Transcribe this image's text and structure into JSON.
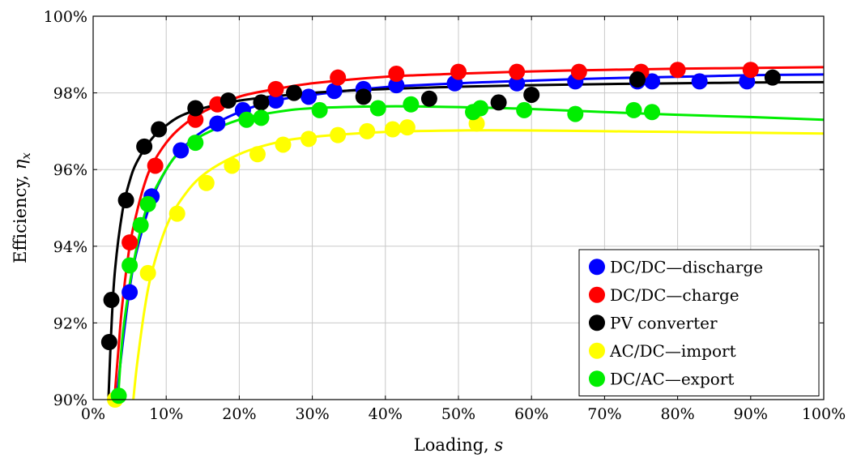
{
  "chart_data": {
    "type": "scatter",
    "title": "",
    "xlabel": "Loading, ",
    "xlabel_symbol": "s",
    "ylabel": "Efficiency, ",
    "ylabel_symbol": "η",
    "ylabel_subscript": "x",
    "xlim": [
      0,
      100
    ],
    "ylim": [
      90,
      100
    ],
    "x_ticks": [
      "0%",
      "10%",
      "20%",
      "30%",
      "40%",
      "50%",
      "60%",
      "70%",
      "80%",
      "90%",
      "100%"
    ],
    "y_ticks": [
      "90%",
      "92%",
      "94%",
      "96%",
      "98%",
      "100%"
    ],
    "x_tick_values": [
      0,
      10,
      20,
      30,
      40,
      50,
      60,
      70,
      80,
      90,
      100
    ],
    "y_tick_values": [
      90,
      92,
      94,
      96,
      98,
      100
    ],
    "grid": true,
    "legend_position": "bottom-right",
    "series": [
      {
        "name": "DC/DC—discharge",
        "color": "#0000ff",
        "points": [
          [
            5,
            92.8
          ],
          [
            8,
            95.3
          ],
          [
            12,
            96.5
          ],
          [
            17,
            97.2
          ],
          [
            20.5,
            97.55
          ],
          [
            25,
            97.8
          ],
          [
            29.5,
            97.9
          ],
          [
            33,
            98.05
          ],
          [
            37,
            98.1
          ],
          [
            41.5,
            98.2
          ],
          [
            49.5,
            98.25
          ],
          [
            58,
            98.25
          ],
          [
            66,
            98.3
          ],
          [
            74.5,
            98.3
          ],
          [
            76.5,
            98.3
          ],
          [
            83,
            98.3
          ],
          [
            89.5,
            98.3
          ]
        ],
        "fit": [
          [
            3.2,
            90
          ],
          [
            4,
            91.4
          ],
          [
            5,
            92.9
          ],
          [
            6,
            93.9
          ],
          [
            8,
            95.2
          ],
          [
            10,
            96.0
          ],
          [
            12,
            96.5
          ],
          [
            15,
            97.0
          ],
          [
            20,
            97.5
          ],
          [
            25,
            97.8
          ],
          [
            30,
            97.95
          ],
          [
            40,
            98.15
          ],
          [
            50,
            98.25
          ],
          [
            60,
            98.32
          ],
          [
            70,
            98.38
          ],
          [
            80,
            98.42
          ],
          [
            90,
            98.46
          ],
          [
            100,
            98.48
          ]
        ]
      },
      {
        "name": "DC/DC—charge",
        "color": "#ff0000",
        "points": [
          [
            5,
            94.1
          ],
          [
            8.5,
            96.1
          ],
          [
            14,
            97.3
          ],
          [
            17,
            97.7
          ],
          [
            25,
            98.1
          ],
          [
            33.5,
            98.4
          ],
          [
            41.5,
            98.5
          ],
          [
            50,
            98.55
          ],
          [
            58,
            98.55
          ],
          [
            66.5,
            98.55
          ],
          [
            75,
            98.55
          ],
          [
            80,
            98.6
          ],
          [
            90,
            98.6
          ]
        ],
        "fit": [
          [
            2.9,
            90
          ],
          [
            3.5,
            91.4
          ],
          [
            4,
            92.5
          ],
          [
            5,
            94.0
          ],
          [
            6,
            94.9
          ],
          [
            7,
            95.6
          ],
          [
            8,
            96.1
          ],
          [
            10,
            96.7
          ],
          [
            12,
            97.1
          ],
          [
            15,
            97.5
          ],
          [
            20,
            97.9
          ],
          [
            25,
            98.1
          ],
          [
            30,
            98.25
          ],
          [
            40,
            98.42
          ],
          [
            50,
            98.5
          ],
          [
            60,
            98.56
          ],
          [
            70,
            98.6
          ],
          [
            80,
            98.63
          ],
          [
            90,
            98.65
          ],
          [
            100,
            98.67
          ]
        ]
      },
      {
        "name": "PV converter",
        "color": "#000000",
        "points": [
          [
            2.2,
            91.5
          ],
          [
            2.5,
            92.6
          ],
          [
            4.5,
            95.2
          ],
          [
            7,
            96.6
          ],
          [
            9,
            97.05
          ],
          [
            14,
            97.6
          ],
          [
            18.5,
            97.8
          ],
          [
            23,
            97.75
          ],
          [
            27.5,
            98.0
          ],
          [
            37,
            97.9
          ],
          [
            46,
            97.85
          ],
          [
            55.5,
            97.75
          ],
          [
            60,
            97.95
          ],
          [
            74.5,
            98.35
          ],
          [
            93,
            98.4
          ]
        ],
        "fit": [
          [
            2.1,
            90
          ],
          [
            2.5,
            91.9
          ],
          [
            3,
            93.4
          ],
          [
            4,
            94.9
          ],
          [
            5,
            95.7
          ],
          [
            6,
            96.2
          ],
          [
            8,
            96.8
          ],
          [
            10,
            97.15
          ],
          [
            12,
            97.4
          ],
          [
            15,
            97.6
          ],
          [
            20,
            97.8
          ],
          [
            30,
            98.0
          ],
          [
            40,
            98.1
          ],
          [
            50,
            98.16
          ],
          [
            60,
            98.2
          ],
          [
            70,
            98.23
          ],
          [
            80,
            98.25
          ],
          [
            90,
            98.27
          ],
          [
            100,
            98.28
          ]
        ]
      },
      {
        "name": "AC/DC—import",
        "color": "#ffff00",
        "points": [
          [
            3,
            90.0
          ],
          [
            7.5,
            93.3
          ],
          [
            11.5,
            94.85
          ],
          [
            15.5,
            95.65
          ],
          [
            19,
            96.1
          ],
          [
            22.5,
            96.4
          ],
          [
            26,
            96.65
          ],
          [
            29.5,
            96.8
          ],
          [
            33.5,
            96.9
          ],
          [
            37.5,
            97.0
          ],
          [
            41,
            97.05
          ],
          [
            43,
            97.1
          ],
          [
            52.5,
            97.2
          ]
        ],
        "fit": [
          [
            5.5,
            90
          ],
          [
            6,
            90.9
          ],
          [
            7,
            92.3
          ],
          [
            8,
            93.3
          ],
          [
            10,
            94.5
          ],
          [
            12,
            95.2
          ],
          [
            15,
            95.85
          ],
          [
            20,
            96.4
          ],
          [
            25,
            96.7
          ],
          [
            30,
            96.85
          ],
          [
            40,
            96.98
          ],
          [
            50,
            97.02
          ],
          [
            60,
            97.02
          ],
          [
            70,
            97.0
          ],
          [
            80,
            96.98
          ],
          [
            90,
            96.96
          ],
          [
            100,
            96.94
          ]
        ]
      },
      {
        "name": "DC/AC—export",
        "color": "#00ee00",
        "points": [
          [
            3.5,
            90.1
          ],
          [
            5,
            93.5
          ],
          [
            6.5,
            94.55
          ],
          [
            7.5,
            95.1
          ],
          [
            14,
            96.7
          ],
          [
            21,
            97.3
          ],
          [
            23,
            97.35
          ],
          [
            31,
            97.55
          ],
          [
            39,
            97.6
          ],
          [
            43.5,
            97.7
          ],
          [
            52,
            97.5
          ],
          [
            53,
            97.6
          ],
          [
            59,
            97.55
          ],
          [
            66,
            97.45
          ],
          [
            74,
            97.55
          ],
          [
            76.5,
            97.5
          ]
        ],
        "fit": [
          [
            3.4,
            90
          ],
          [
            4,
            91.6
          ],
          [
            5,
            93.0
          ],
          [
            6,
            94.0
          ],
          [
            7,
            94.8
          ],
          [
            8,
            95.3
          ],
          [
            10,
            96.0
          ],
          [
            12,
            96.5
          ],
          [
            15,
            96.9
          ],
          [
            20,
            97.3
          ],
          [
            25,
            97.5
          ],
          [
            30,
            97.6
          ],
          [
            40,
            97.65
          ],
          [
            50,
            97.63
          ],
          [
            60,
            97.58
          ],
          [
            70,
            97.5
          ],
          [
            80,
            97.43
          ],
          [
            90,
            97.37
          ],
          [
            100,
            97.3
          ]
        ]
      }
    ]
  }
}
